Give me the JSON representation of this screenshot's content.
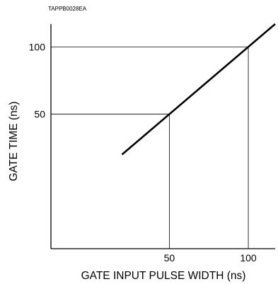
{
  "chart_data": {
    "type": "line",
    "figure_code": "TAPPB0028EA",
    "xlabel": "GATE INPUT PULSE WIDTH (ns)",
    "ylabel": "GATE TIME (ns)",
    "x_ticks": [
      50,
      100
    ],
    "y_ticks": [
      50,
      100
    ],
    "xlim": [
      -25,
      117
    ],
    "ylim": [
      -50,
      117
    ],
    "series": [
      {
        "x": [
          20,
          117
        ],
        "y": [
          20,
          117
        ]
      }
    ],
    "reference_lines": [
      {
        "x": 50,
        "y": 50
      },
      {
        "x": 100,
        "y": 100
      }
    ],
    "grid": false,
    "colors": {
      "line": "#000000",
      "axes": "#000000"
    }
  }
}
